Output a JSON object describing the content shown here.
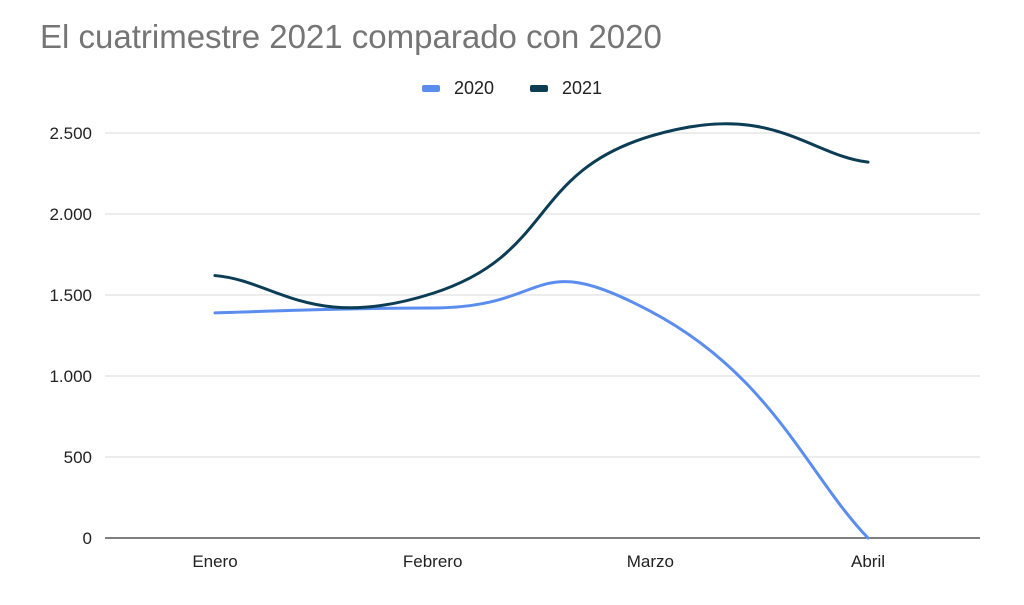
{
  "chart_data": {
    "type": "line",
    "title": "El cuatrimestre 2021 comparado con 2020",
    "xlabel": "",
    "ylabel": "",
    "categories": [
      "Enero",
      "Febrero",
      "Marzo",
      "Abril"
    ],
    "series": [
      {
        "name": "2020",
        "values": [
          1390,
          1420,
          1400,
          0
        ],
        "color": "#5b8def"
      },
      {
        "name": "2021",
        "values": [
          1620,
          1510,
          2480,
          2320
        ],
        "color": "#0b3d55"
      }
    ],
    "ylim": [
      0,
      2500
    ],
    "yticks": [
      0,
      500,
      1000,
      1500,
      2000,
      2500
    ],
    "ytick_labels": [
      "0",
      "500",
      "1.000",
      "1.500",
      "2.000",
      "2.500"
    ],
    "grid": true,
    "legend_position": "top-center",
    "curve": "smooth"
  }
}
